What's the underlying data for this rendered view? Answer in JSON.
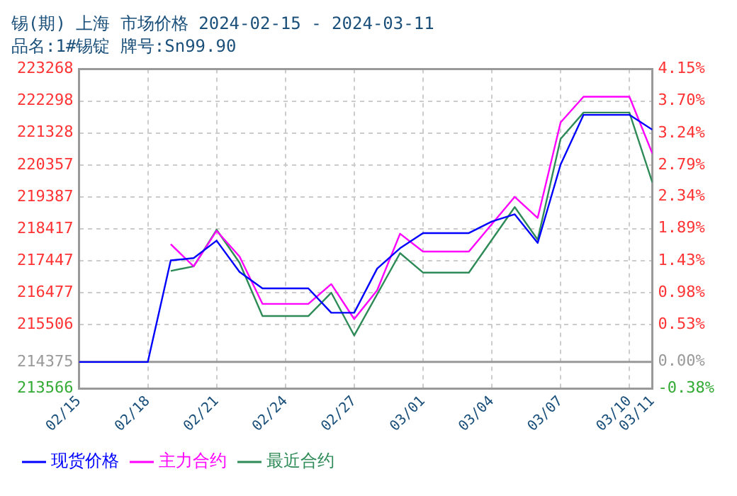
{
  "chart_data": {
    "type": "line",
    "title": "锡(期) 上海 市场价格 2024-02-15 - 2024-03-11",
    "subtitle": "品名:1#锡锭 牌号:Sn99.90",
    "xlim": [
      "2024-02-15",
      "2024-03-11"
    ],
    "xticks": [
      {
        "value": "2024-02-15",
        "label": "02/15"
      },
      {
        "value": "2024-02-18",
        "label": "02/18"
      },
      {
        "value": "2024-02-21",
        "label": "02/21"
      },
      {
        "value": "2024-02-24",
        "label": "02/24"
      },
      {
        "value": "2024-02-27",
        "label": "02/27"
      },
      {
        "value": "2024-03-01",
        "label": "03/01"
      },
      {
        "value": "2024-03-04",
        "label": "03/04"
      },
      {
        "value": "2024-03-07",
        "label": "03/07"
      },
      {
        "value": "2024-03-10",
        "label": "03/10"
      },
      {
        "value": "2024-03-11",
        "label": "03/11"
      }
    ],
    "ylim": [
      213566,
      223268
    ],
    "yticks": [
      213566,
      214375,
      215506,
      216477,
      217447,
      218417,
      219387,
      220357,
      221328,
      222298,
      223268
    ],
    "y2lim": [
      -0.38,
      4.15
    ],
    "y2ticks": [
      {
        "value": -0.38,
        "label": "-0.38%"
      },
      {
        "value": 0,
        "label": "0.00%"
      },
      {
        "value": 0.53,
        "label": "0.53%"
      },
      {
        "value": 0.98,
        "label": "0.98%"
      },
      {
        "value": 1.43,
        "label": "1.43%"
      },
      {
        "value": 1.89,
        "label": "1.89%"
      },
      {
        "value": 2.34,
        "label": "2.34%"
      },
      {
        "value": 2.79,
        "label": "2.79%"
      },
      {
        "value": 3.24,
        "label": "3.24%"
      },
      {
        "value": 3.7,
        "label": "3.70%"
      },
      {
        "value": 4.15,
        "label": "4.15%"
      }
    ],
    "ref_lines": [
      {
        "axis": "y",
        "value": 214375,
        "color": "#999999"
      }
    ],
    "grid": true,
    "legend": "bottom",
    "marker": "none",
    "line_style": "solid",
    "series": [
      {
        "name": "现货价格",
        "color": "#0000ff",
        "x": [
          "2024-02-15",
          "2024-02-18",
          "2024-02-19",
          "2024-02-20",
          "2024-02-21",
          "2024-02-22",
          "2024-02-23",
          "2024-02-25",
          "2024-02-26",
          "2024-02-27",
          "2024-02-28",
          "2024-02-29",
          "2024-03-01",
          "2024-03-03",
          "2024-03-04",
          "2024-03-05",
          "2024-03-06",
          "2024-03-07",
          "2024-03-08",
          "2024-03-10",
          "2024-03-11"
        ],
        "values": [
          214375,
          214375,
          217460,
          217530,
          218060,
          217110,
          216610,
          216610,
          215870,
          215870,
          217210,
          217830,
          218290,
          218290,
          218640,
          218860,
          217990,
          220370,
          221880,
          221880,
          221430
        ]
      },
      {
        "name": "主力合约",
        "color": "#ff00ff",
        "x": [
          "2024-02-19",
          "2024-02-20",
          "2024-02-21",
          "2024-02-22",
          "2024-02-23",
          "2024-02-25",
          "2024-02-26",
          "2024-02-27",
          "2024-02-28",
          "2024-02-29",
          "2024-03-01",
          "2024-03-03",
          "2024-03-05",
          "2024-03-06",
          "2024-03-07",
          "2024-03-08",
          "2024-03-10",
          "2024-03-11"
        ],
        "values": [
          217950,
          217280,
          218360,
          217580,
          216140,
          216140,
          216740,
          215680,
          216550,
          218270,
          217730,
          217730,
          219390,
          218750,
          221650,
          222430,
          222430,
          220710
        ]
      },
      {
        "name": "最近合约",
        "color": "#2e8b57",
        "x": [
          "2024-02-19",
          "2024-02-20",
          "2024-02-21",
          "2024-02-22",
          "2024-02-23",
          "2024-02-25",
          "2024-02-26",
          "2024-02-27",
          "2024-02-29",
          "2024-03-01",
          "2024-03-03",
          "2024-03-05",
          "2024-03-06",
          "2024-03-07",
          "2024-03-08",
          "2024-03-10",
          "2024-03-11"
        ],
        "values": [
          217140,
          217280,
          218390,
          217390,
          215770,
          215770,
          216480,
          215180,
          217680,
          217090,
          217090,
          219080,
          218090,
          221150,
          221950,
          221950,
          219830
        ]
      }
    ]
  }
}
